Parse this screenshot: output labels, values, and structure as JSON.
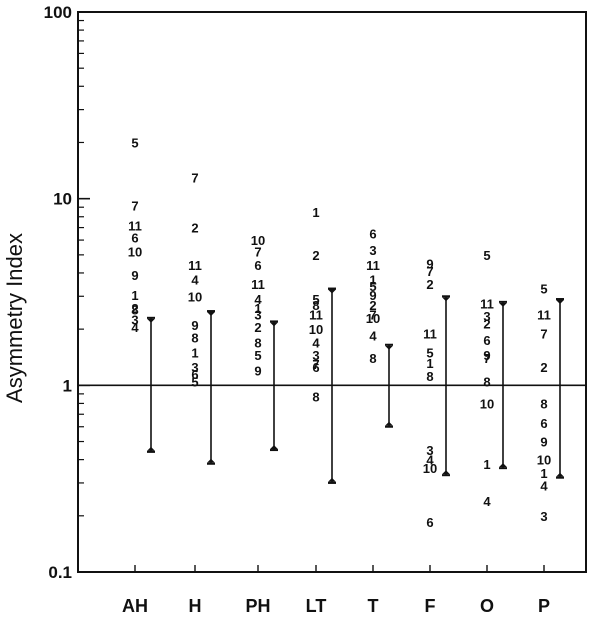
{
  "chart_data": {
    "type": "scatter",
    "ylabel": "Asymmetry Index",
    "xlabel": "",
    "yscale": "log",
    "ylim": [
      0.1,
      100
    ],
    "y_ticks": [
      {
        "value": 0.1,
        "label": "0.1"
      },
      {
        "value": 1,
        "label": "1"
      },
      {
        "value": 10,
        "label": "10"
      },
      {
        "value": 100,
        "label": "100"
      }
    ],
    "reference_line": 1,
    "categories": [
      "AH",
      "H",
      "PH",
      "LT",
      "T",
      "F",
      "O",
      "P"
    ],
    "groups": [
      {
        "category": "AH",
        "range": [
          0.44,
          2.3
        ],
        "points": [
          {
            "label": "5",
            "y": 20
          },
          {
            "label": "7",
            "y": 9.2
          },
          {
            "label": "11",
            "y": 7.2
          },
          {
            "label": "6",
            "y": 6.2
          },
          {
            "label": "10",
            "y": 5.2
          },
          {
            "label": "9",
            "y": 3.9
          },
          {
            "label": "1",
            "y": 3.05
          },
          {
            "label": "8",
            "y": 2.55
          },
          {
            "label": "2",
            "y": 2.6
          },
          {
            "label": "3",
            "y": 2.25
          },
          {
            "label": "4",
            "y": 2.05
          }
        ]
      },
      {
        "category": "H",
        "range": [
          0.38,
          2.5
        ],
        "points": [
          {
            "label": "7",
            "y": 13
          },
          {
            "label": "2",
            "y": 7
          },
          {
            "label": "11",
            "y": 4.4
          },
          {
            "label": "4",
            "y": 3.7
          },
          {
            "label": "10",
            "y": 3.0
          },
          {
            "label": "9",
            "y": 2.1
          },
          {
            "label": "8",
            "y": 1.8
          },
          {
            "label": "1",
            "y": 1.5
          },
          {
            "label": "3",
            "y": 1.25
          },
          {
            "label": "6",
            "y": 1.15
          },
          {
            "label": "5",
            "y": 1.05
          }
        ]
      },
      {
        "category": "PH",
        "range": [
          0.45,
          2.2
        ],
        "points": [
          {
            "label": "10",
            "y": 6
          },
          {
            "label": "7",
            "y": 5.2
          },
          {
            "label": "6",
            "y": 4.4
          },
          {
            "label": "11",
            "y": 3.5
          },
          {
            "label": "4",
            "y": 2.9
          },
          {
            "label": "1",
            "y": 2.6
          },
          {
            "label": "3",
            "y": 2.4
          },
          {
            "label": "2",
            "y": 2.05
          },
          {
            "label": "8",
            "y": 1.7
          },
          {
            "label": "5",
            "y": 1.45
          },
          {
            "label": "9",
            "y": 1.2
          }
        ]
      },
      {
        "category": "LT",
        "range": [
          0.3,
          3.3
        ],
        "points": [
          {
            "label": "1",
            "y": 8.5
          },
          {
            "label": "2",
            "y": 5
          },
          {
            "label": "5",
            "y": 2.9
          },
          {
            "label": "8",
            "y": 2.7
          },
          {
            "label": "11",
            "y": 2.4
          },
          {
            "label": "10",
            "y": 2.0
          },
          {
            "label": "4",
            "y": 1.7
          },
          {
            "label": "3",
            "y": 1.45
          },
          {
            "label": "6",
            "y": 1.25
          },
          {
            "label": "7",
            "y": 1.3
          },
          {
            "label": "8",
            "y": 0.87
          }
        ]
      },
      {
        "category": "T",
        "range": [
          0.6,
          1.65
        ],
        "points": [
          {
            "label": "6",
            "y": 6.5
          },
          {
            "label": "3",
            "y": 5.3
          },
          {
            "label": "11",
            "y": 4.4
          },
          {
            "label": "1",
            "y": 3.7
          },
          {
            "label": "5",
            "y": 3.4
          },
          {
            "label": "9",
            "y": 3.05
          },
          {
            "label": "2",
            "y": 2.7
          },
          {
            "label": "7",
            "y": 2.4
          },
          {
            "label": "10",
            "y": 2.3
          },
          {
            "label": "4",
            "y": 1.85
          },
          {
            "label": "8",
            "y": 1.4
          }
        ]
      },
      {
        "category": "F",
        "range": [
          0.33,
          3.0
        ],
        "points": [
          {
            "label": "9",
            "y": 4.5
          },
          {
            "label": "7",
            "y": 4.1
          },
          {
            "label": "2",
            "y": 3.5
          },
          {
            "label": "11",
            "y": 1.9
          },
          {
            "label": "5",
            "y": 1.5
          },
          {
            "label": "1",
            "y": 1.32
          },
          {
            "label": "8",
            "y": 1.12
          },
          {
            "label": "3",
            "y": 0.45
          },
          {
            "label": "4",
            "y": 0.4
          },
          {
            "label": "10",
            "y": 0.36
          },
          {
            "label": "6",
            "y": 0.185
          }
        ]
      },
      {
        "category": "O",
        "range": [
          0.36,
          2.8
        ],
        "points": [
          {
            "label": "5",
            "y": 5
          },
          {
            "label": "11",
            "y": 2.75
          },
          {
            "label": "3",
            "y": 2.35
          },
          {
            "label": "2",
            "y": 2.15
          },
          {
            "label": "6",
            "y": 1.75
          },
          {
            "label": "9",
            "y": 1.45
          },
          {
            "label": "7",
            "y": 1.4
          },
          {
            "label": "8",
            "y": 1.05
          },
          {
            "label": "10",
            "y": 0.8
          },
          {
            "label": "1",
            "y": 0.38
          },
          {
            "label": "4",
            "y": 0.24
          }
        ]
      },
      {
        "category": "P",
        "range": [
          0.32,
          2.9
        ],
        "points": [
          {
            "label": "5",
            "y": 3.3
          },
          {
            "label": "11",
            "y": 2.4
          },
          {
            "label": "7",
            "y": 1.9
          },
          {
            "label": "2",
            "y": 1.25
          },
          {
            "label": "8",
            "y": 0.8
          },
          {
            "label": "6",
            "y": 0.63
          },
          {
            "label": "9",
            "y": 0.5
          },
          {
            "label": "10",
            "y": 0.4
          },
          {
            "label": "1",
            "y": 0.34
          },
          {
            "label": "4",
            "y": 0.29
          },
          {
            "label": "3",
            "y": 0.2
          }
        ]
      }
    ]
  }
}
